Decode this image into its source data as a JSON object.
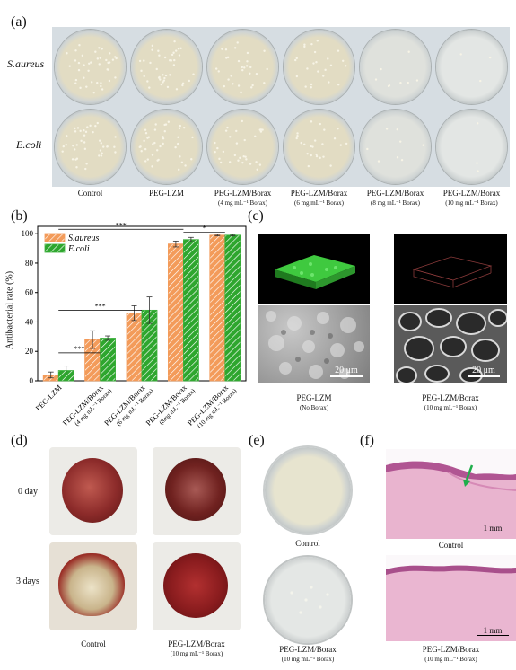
{
  "panels": {
    "a": "(a)",
    "b": "(b)",
    "c": "(c)",
    "d": "(d)",
    "e": "(e)",
    "f": "(f)"
  },
  "panel_a": {
    "row_labels": [
      "S.aureus",
      "E.coli"
    ],
    "columns": [
      {
        "name": "Control",
        "sub": ""
      },
      {
        "name": "PEG-LZM",
        "sub": ""
      },
      {
        "name": "PEG-LZM/Borax",
        "sub": "(4 mg mL⁻¹ Borax)"
      },
      {
        "name": "PEG-LZM/Borax",
        "sub": "(6 mg mL⁻¹ Borax)"
      },
      {
        "name": "PEG-LZM/Borax",
        "sub": "(8 mg mL⁻¹ Borax)"
      },
      {
        "name": "PEG-LZM/Borax",
        "sub": "(10 mg mL⁻¹ Borax)"
      }
    ]
  },
  "chart_data": {
    "type": "bar",
    "ylabel": "Antibacterial rate (%)",
    "ylim": [
      0,
      105
    ],
    "yticks": [
      "0",
      "20",
      "40",
      "60",
      "80",
      "100"
    ],
    "categories": [
      "PEG-LZM",
      "PEG-LZM/Borax (4 mg mL⁻¹ Borax)",
      "PEG-LZM/Borax (6 mg mL⁻¹ Borax)",
      "PEG-LZM/Borax (8mg mL⁻¹ Borax)",
      "PEG-LZM/Borax (10 mg mL⁻¹ Borax)"
    ],
    "cat_lines": [
      [
        "PEG-LZM"
      ],
      [
        "PEG-LZM/Borax",
        "(4 mg mL⁻¹ Borax)"
      ],
      [
        "PEG-LZM/Borax",
        "(6 mg mL⁻¹ Borax)"
      ],
      [
        "PEG-LZM/Borax",
        "(8mg mL⁻¹ Borax)"
      ],
      [
        "PEG-LZM/Borax",
        "(10 mg mL⁻¹ Borax)"
      ]
    ],
    "series": [
      {
        "name": "S.aureus",
        "values": [
          4,
          28,
          46,
          93,
          99
        ],
        "errors": [
          2,
          6,
          5,
          2,
          0.5
        ],
        "color": "#f39b5a"
      },
      {
        "name": "E.coli",
        "values": [
          7,
          29,
          48,
          96,
          99
        ],
        "errors": [
          3,
          1.5,
          9,
          1.5,
          0.5
        ],
        "color": "#3ab03a"
      }
    ],
    "significance": [
      "***",
      "***",
      "***",
      "*"
    ],
    "legend": "top-left"
  },
  "panel_c": {
    "scale_text": "20 μm",
    "captions": [
      {
        "name": "PEG-LZM",
        "sub": "(No Borax)"
      },
      {
        "name": "PEG-LZM/Borax",
        "sub": "(10 mg mL⁻¹ Borax)"
      }
    ]
  },
  "panel_d": {
    "row_labels": [
      "0 day",
      "3 days"
    ],
    "captions": [
      {
        "name": "Control",
        "sub": ""
      },
      {
        "name": "PEG-LZM/Borax",
        "sub": "(10 mg mL⁻¹ Borax)"
      }
    ]
  },
  "panel_e": {
    "captions": [
      {
        "name": "Control",
        "sub": ""
      },
      {
        "name": "PEG-LZM/Borax",
        "sub": "(10 mg mL⁻¹ Borax)"
      }
    ]
  },
  "panel_f": {
    "scale_text": "1 mm",
    "captions": [
      {
        "name": "Control",
        "sub": ""
      },
      {
        "name": "PEG-LZM/Borax",
        "sub": "(10 mg mL⁻¹ Borax)"
      }
    ]
  }
}
